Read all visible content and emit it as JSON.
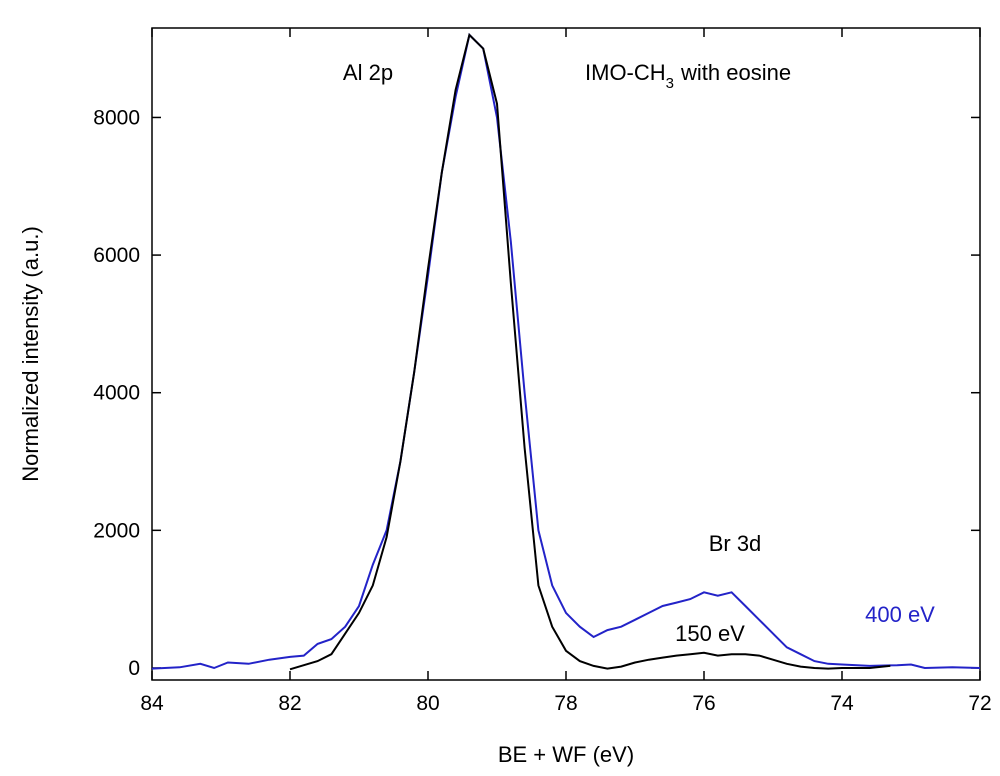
{
  "chart_data": {
    "type": "line",
    "x_label": "BE + WF (eV)",
    "y_label": "Normalized intensity (a.u.)",
    "xlim": [
      84,
      72
    ],
    "xticks": [
      84,
      82,
      80,
      78,
      76,
      74,
      72
    ],
    "ylim": [
      -175,
      9300
    ],
    "yticks": [
      0,
      2000,
      4000,
      6000,
      8000
    ],
    "annotations": {
      "peak": "Al 2p",
      "sample_main": "IMO-CH",
      "sample_sub": "3",
      "sample_rest": "with eosine",
      "minor_peak": "Br 3d"
    },
    "series": [
      {
        "name": "400 eV",
        "color": "#2323c8",
        "x": [
          84,
          83.6,
          83.3,
          83.1,
          82.9,
          82.6,
          82.3,
          82,
          81.8,
          81.6,
          81.4,
          81.2,
          81,
          80.8,
          80.6,
          80.4,
          80.2,
          80,
          79.8,
          79.6,
          79.4,
          79.2,
          79,
          78.8,
          78.6,
          78.4,
          78.2,
          78,
          77.8,
          77.6,
          77.4,
          77.2,
          77,
          76.8,
          76.6,
          76.4,
          76.2,
          76,
          75.8,
          75.6,
          75.4,
          75.2,
          75,
          74.8,
          74.6,
          74.4,
          74.2,
          74,
          73.6,
          73.2,
          73,
          72.8,
          72.4,
          72
        ],
        "values": [
          -10,
          10,
          60,
          0,
          80,
          60,
          120,
          160,
          180,
          350,
          420,
          600,
          900,
          1500,
          2000,
          3000,
          4300,
          5700,
          7200,
          8300,
          9200,
          9000,
          8000,
          6200,
          4000,
          2000,
          1200,
          800,
          600,
          450,
          550,
          600,
          700,
          800,
          900,
          950,
          1000,
          1100,
          1050,
          1100,
          900,
          700,
          500,
          300,
          200,
          100,
          60,
          50,
          30,
          40,
          50,
          0,
          10,
          0
        ]
      },
      {
        "name": "150 eV",
        "color": "#000000",
        "x": [
          82,
          81.8,
          81.6,
          81.4,
          81.2,
          81,
          80.8,
          80.6,
          80.4,
          80.2,
          80,
          79.8,
          79.6,
          79.4,
          79.2,
          79,
          78.8,
          78.6,
          78.4,
          78.2,
          78,
          77.8,
          77.6,
          77.4,
          77.2,
          77,
          76.8,
          76.6,
          76.4,
          76.2,
          76,
          75.8,
          75.6,
          75.4,
          75.2,
          75,
          74.8,
          74.6,
          74.4,
          74.2,
          74,
          73.6,
          73.3
        ],
        "values": [
          -20,
          40,
          100,
          200,
          500,
          800,
          1200,
          1900,
          3000,
          4300,
          5800,
          7200,
          8400,
          9200,
          9000,
          8200,
          5600,
          3200,
          1200,
          600,
          250,
          100,
          30,
          -10,
          20,
          80,
          120,
          150,
          180,
          200,
          220,
          180,
          200,
          200,
          180,
          120,
          60,
          20,
          0,
          -10,
          0,
          0,
          30
        ]
      }
    ]
  }
}
